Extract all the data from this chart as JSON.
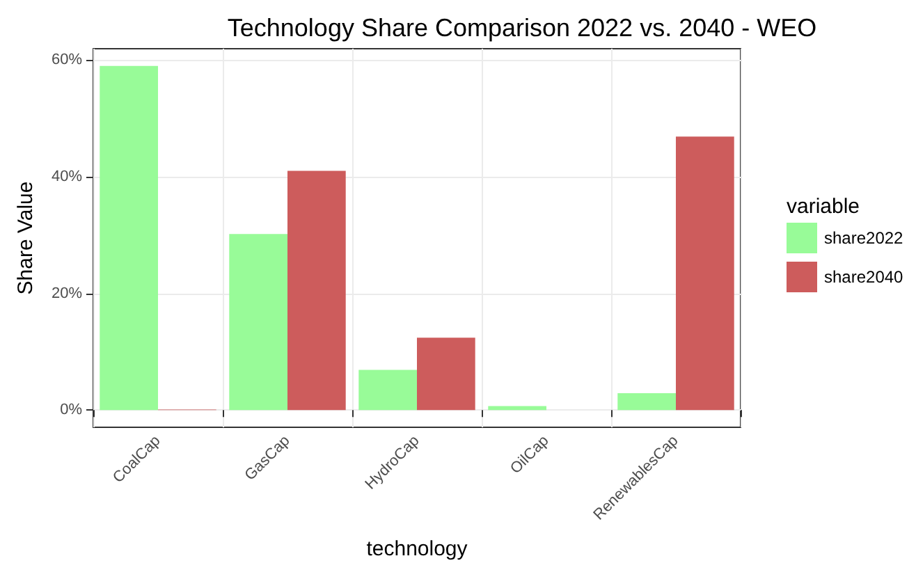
{
  "chart_data": {
    "type": "bar",
    "title": "Technology Share Comparison 2022 vs. 2040 - WEO",
    "xlabel": "technology",
    "ylabel": "Share Value",
    "legend_title": "variable",
    "categories": [
      "CoalCap",
      "GasCap",
      "HydroCap",
      "OilCap",
      "RenewablesCap"
    ],
    "series": [
      {
        "name": "share2022",
        "color": "#98fb98",
        "values": [
          59.0,
          30.2,
          6.9,
          0.7,
          2.9
        ]
      },
      {
        "name": "share2040",
        "color": "#cd5c5c",
        "values": [
          0.1,
          41.0,
          12.4,
          0,
          46.9
        ]
      }
    ],
    "ylim": [
      -2.95,
      61.95
    ],
    "yticks": [
      {
        "value": 0,
        "label": "0%"
      },
      {
        "value": 20,
        "label": "20%"
      },
      {
        "value": 40,
        "label": "40%"
      },
      {
        "value": 60,
        "label": "60%"
      }
    ],
    "grid": true,
    "legend": "right"
  }
}
